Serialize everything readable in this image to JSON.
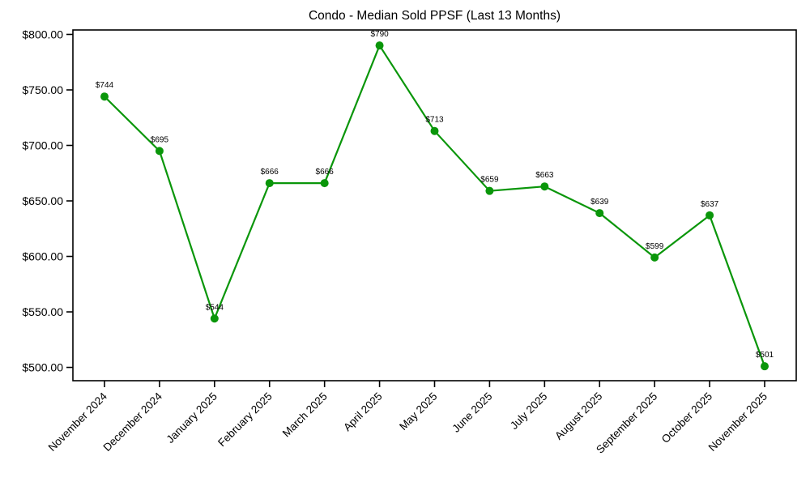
{
  "chart_data": {
    "type": "line",
    "title": "Condo - Median Sold PPSF (Last 13 Months)",
    "categories": [
      "November 2024",
      "December 2024",
      "January 2025",
      "February 2025",
      "March 2025",
      "April 2025",
      "May 2025",
      "June 2025",
      "July 2025",
      "August 2025",
      "September 2025",
      "October 2025",
      "November 2025"
    ],
    "values": [
      744,
      695,
      544,
      666,
      666,
      790,
      713,
      659,
      663,
      639,
      599,
      637,
      501
    ],
    "point_labels": [
      "$744",
      "$695",
      "$544",
      "$666",
      "$666",
      "$790",
      "$713",
      "$659",
      "$663",
      "$639",
      "$599",
      "$637",
      "$501"
    ],
    "yticks": [
      {
        "value": 500,
        "label": "$500.00"
      },
      {
        "value": 550,
        "label": "$550.00"
      },
      {
        "value": 600,
        "label": "$600.00"
      },
      {
        "value": 650,
        "label": "$650.00"
      },
      {
        "value": 700,
        "label": "$700.00"
      },
      {
        "value": 750,
        "label": "$750.00"
      },
      {
        "value": 800,
        "label": "$800.00"
      }
    ],
    "ylim": [
      488,
      804
    ],
    "xlabel": "",
    "ylabel": "",
    "grid": false,
    "legend": "none",
    "line_color": "#0a960a",
    "marker_color": "#0a960a",
    "axis_color": "#000000",
    "text_color": "#000000",
    "background_color": "#ffffff"
  }
}
